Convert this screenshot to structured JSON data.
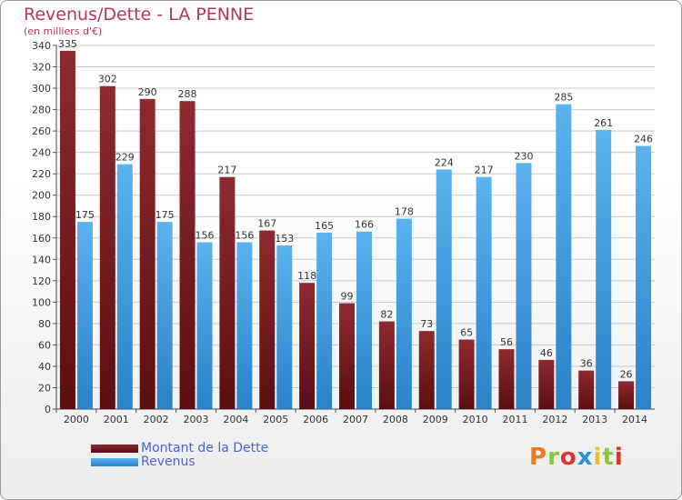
{
  "chart_data": {
    "type": "bar",
    "title": "Revenus/Dette - LA PENNE",
    "subtitle": "(en milliers d'€)",
    "categories": [
      "2000",
      "2001",
      "2002",
      "2003",
      "2004",
      "2005",
      "2006",
      "2007",
      "2008",
      "2009",
      "2010",
      "2011",
      "2012",
      "2013",
      "2014"
    ],
    "series": [
      {
        "name": "Montant de la Dette",
        "color": "#7a1c22",
        "values": [
          335,
          302,
          290,
          288,
          217,
          167,
          118,
          99,
          82,
          73,
          65,
          56,
          46,
          36,
          26
        ]
      },
      {
        "name": "Revenus",
        "color": "#4aa3e6",
        "values": [
          175,
          229,
          175,
          156,
          156,
          153,
          165,
          166,
          178,
          224,
          217,
          230,
          285,
          261,
          246
        ]
      }
    ],
    "ylim": [
      0,
      340
    ],
    "yticks": [
      0,
      20,
      40,
      60,
      80,
      100,
      120,
      140,
      160,
      180,
      200,
      220,
      240,
      260,
      280,
      300,
      320,
      340
    ],
    "grid": true,
    "legend_position": "bottom-left"
  },
  "logo": {
    "text": "Proxiti",
    "colors": [
      "#e87d1e",
      "#8cc63e",
      "#d9352b",
      "#2f8fd8",
      "#e8c21e",
      "#8cc63e",
      "#d9352b"
    ]
  }
}
